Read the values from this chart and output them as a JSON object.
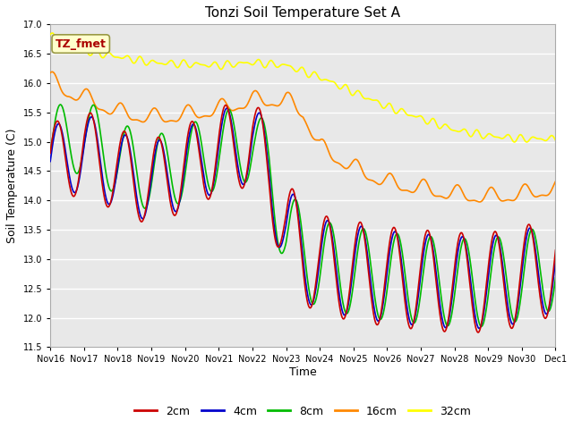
{
  "title": "Tonzi Soil Temperature Set A",
  "xlabel": "Time",
  "ylabel": "Soil Temperature (C)",
  "ylim": [
    11.5,
    17.0
  ],
  "yticks": [
    11.5,
    12.0,
    12.5,
    13.0,
    13.5,
    14.0,
    14.5,
    15.0,
    15.5,
    16.0,
    16.5,
    17.0
  ],
  "bg_color": "#e8e8e8",
  "plot_bg_color": "#e8e8e8",
  "colors": {
    "2cm": "#cc0000",
    "4cm": "#0000cc",
    "8cm": "#00bb00",
    "16cm": "#ff8800",
    "32cm": "#ffff00"
  },
  "annotation_text": "TZ_fmet",
  "annotation_color": "#aa0000",
  "annotation_bg": "#ffffcc",
  "x_tick_labels": [
    "Nov 16",
    "Nov 17",
    "Nov 18",
    "Nov 19",
    "Nov 20",
    "Nov 21",
    "Nov 22",
    "Nov 23",
    "Nov 24",
    "Nov 25",
    "Nov 26",
    "Nov 27",
    "Nov 28",
    "Nov 29",
    "Nov 30",
    "Dec 1"
  ]
}
